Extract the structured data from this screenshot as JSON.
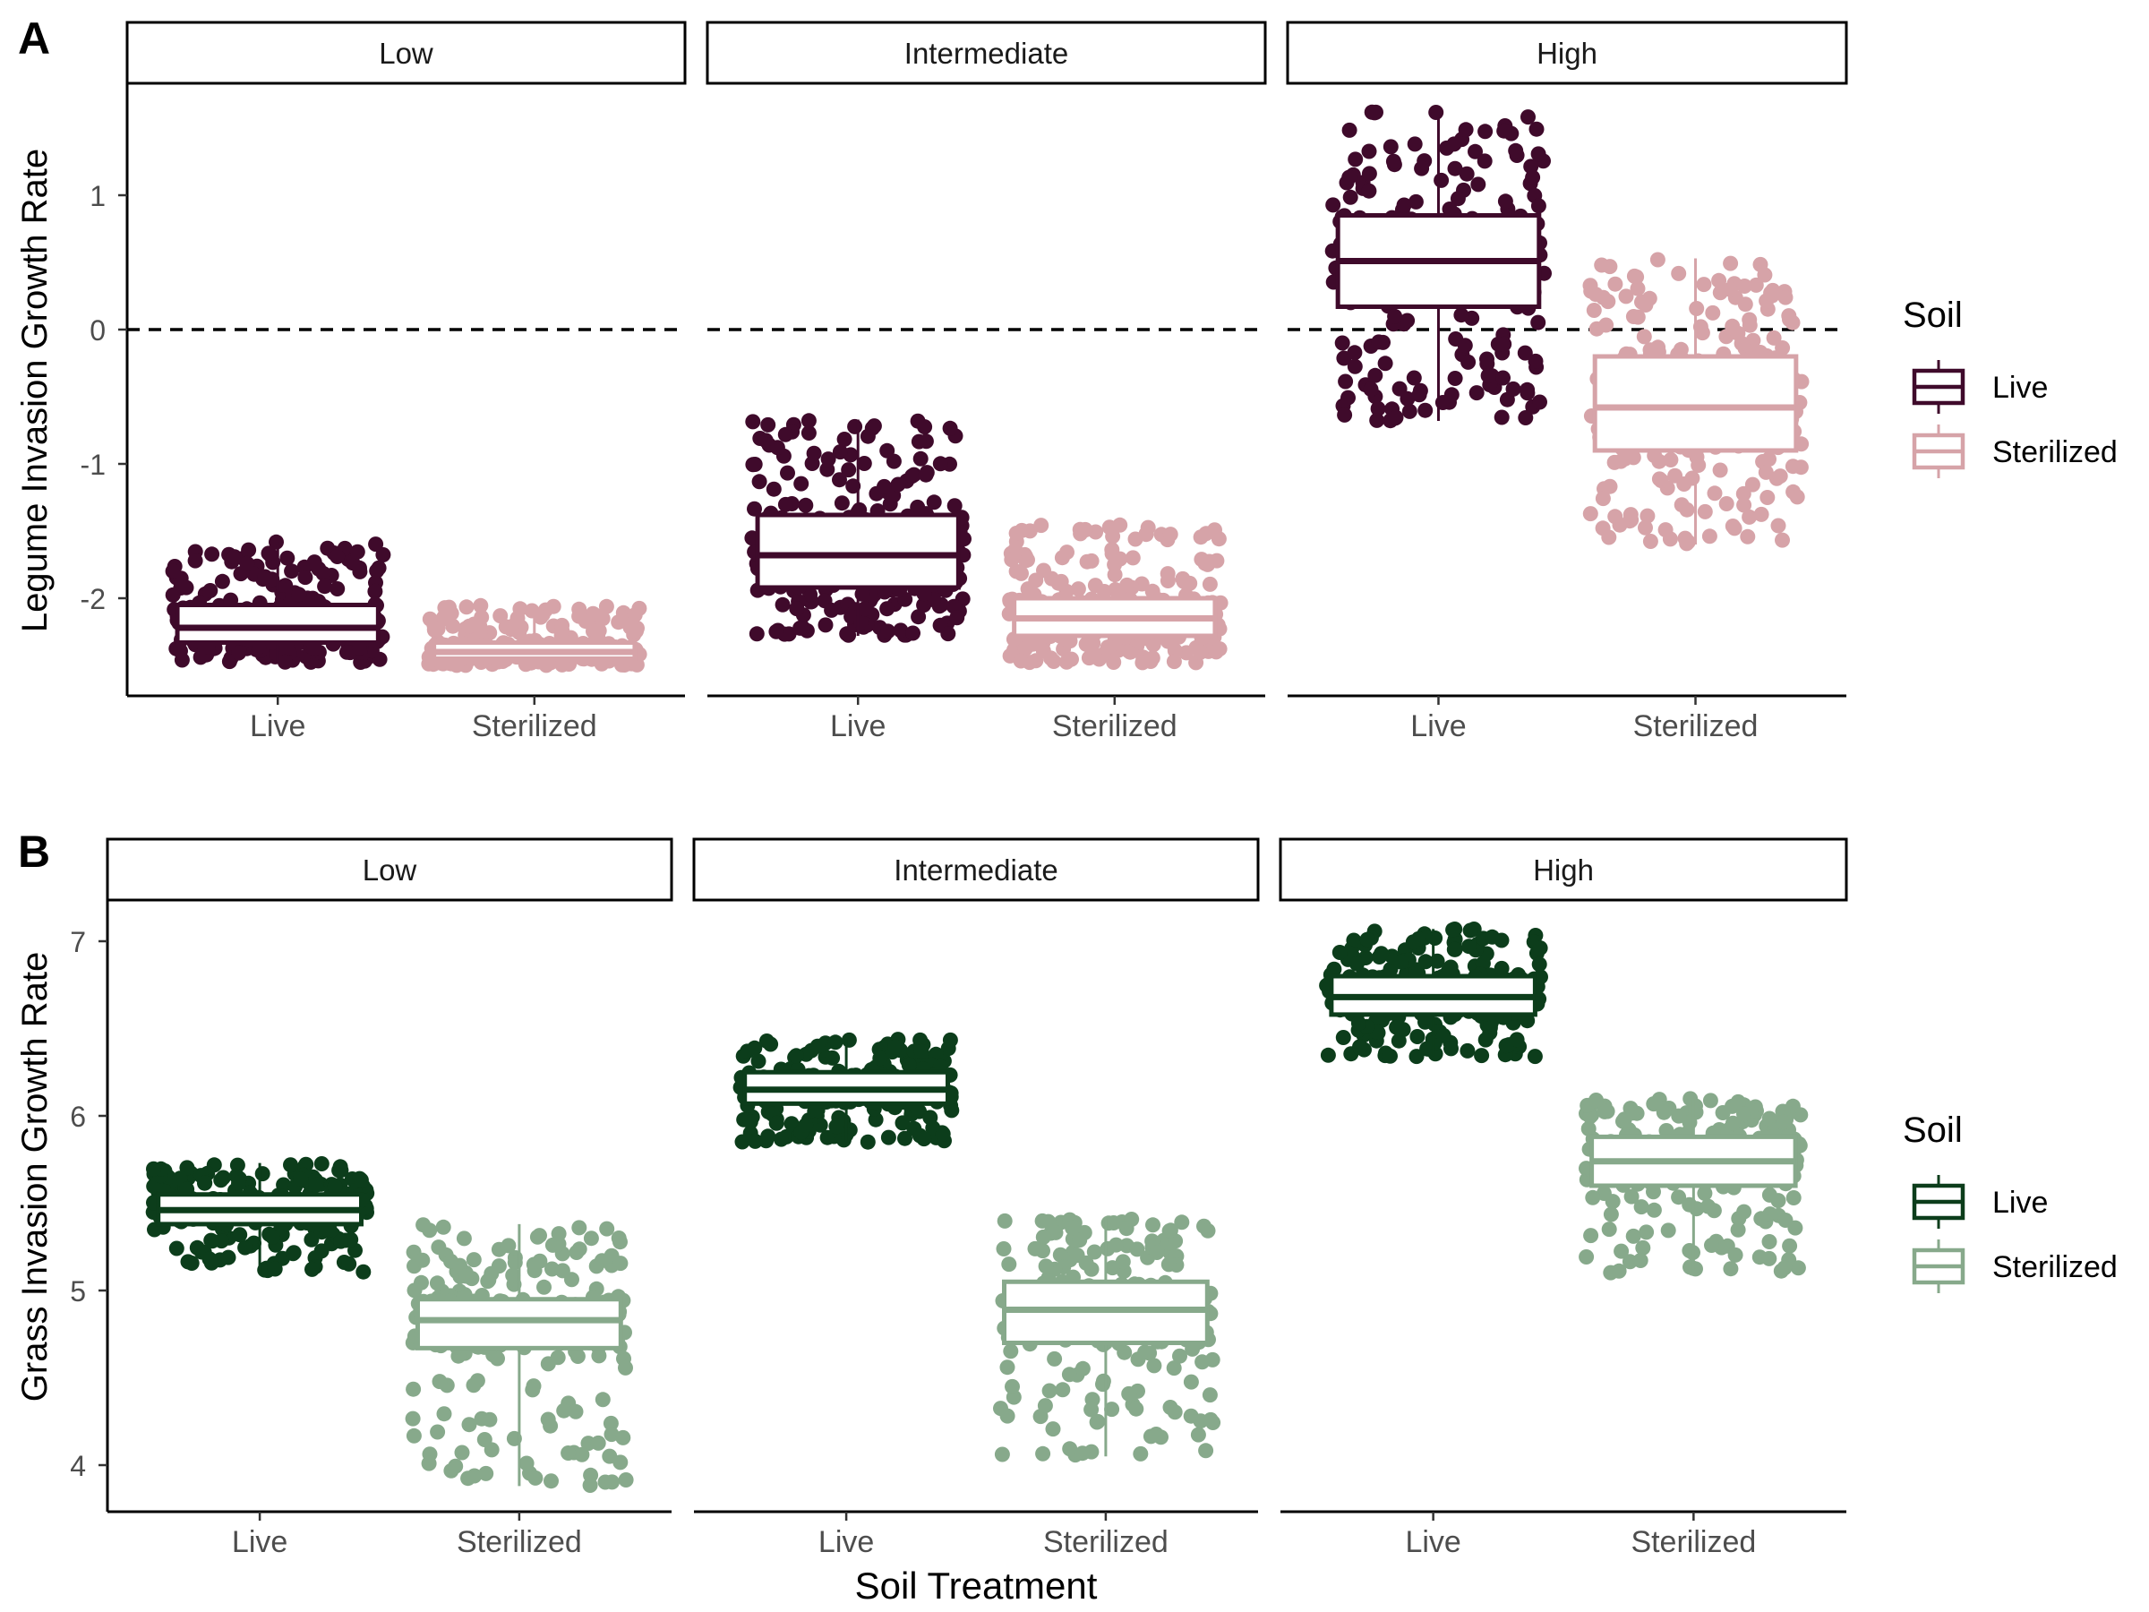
{
  "panels": [
    {
      "letter": "A",
      "ylabel": "Legume Invasion Growth Rate"
    },
    {
      "letter": "B",
      "ylabel": "Grass Invasion Growth Rate"
    }
  ],
  "shared": {
    "xlabel": "Soil Treatment",
    "legend_title": "Soil"
  },
  "colors": {
    "legume_live": "#3f0a2b",
    "legume_sterilized": "#d6a3a8",
    "grass_live": "#0c3d1b",
    "grass_sterilized": "#87a98b"
  },
  "chart_data": [
    {
      "type": "boxplot",
      "title": "",
      "ylabel": "Legume Invasion Growth Rate",
      "xlabel": "",
      "facets": [
        "Low",
        "Intermediate",
        "High"
      ],
      "categories": [
        "Live",
        "Sterilized"
      ],
      "yticks": [
        -2,
        -1,
        0,
        1
      ],
      "ylim": [
        -2.75,
        1.8
      ],
      "reference_line": {
        "y": 0,
        "style": "dashed"
      },
      "legend": {
        "title": "Soil",
        "entries": [
          "Live",
          "Sterilized"
        ],
        "placement": "right"
      },
      "series": [
        {
          "name": "Live",
          "color": "#3f0a2b",
          "boxes": [
            {
              "facet": "Low",
              "min": -2.48,
              "q1": -2.33,
              "median": -2.22,
              "q3": -2.05,
              "max": -1.58
            },
            {
              "facet": "Intermediate",
              "min": -2.28,
              "q1": -1.92,
              "median": -1.68,
              "q3": -1.38,
              "max": -0.67
            },
            {
              "facet": "High",
              "min": -0.68,
              "q1": 0.17,
              "median": 0.51,
              "q3": 0.85,
              "max": 1.62
            }
          ]
        },
        {
          "name": "Sterilized",
          "color": "#d6a3a8",
          "boxes": [
            {
              "facet": "Low",
              "min": -2.5,
              "q1": -2.45,
              "median": -2.4,
              "q3": -2.33,
              "max": -2.05
            },
            {
              "facet": "Intermediate",
              "min": -2.48,
              "q1": -2.28,
              "median": -2.15,
              "q3": -2.0,
              "max": -1.44
            },
            {
              "facet": "High",
              "min": -1.6,
              "q1": -0.9,
              "median": -0.58,
              "q3": -0.2,
              "max": 0.53
            }
          ]
        }
      ]
    },
    {
      "type": "boxplot",
      "title": "",
      "ylabel": "Grass Invasion Growth Rate",
      "xlabel": "Soil Treatment",
      "facets": [
        "Low",
        "Intermediate",
        "High"
      ],
      "categories": [
        "Live",
        "Sterilized"
      ],
      "yticks": [
        4,
        5,
        6,
        7
      ],
      "ylim": [
        3.73,
        7.23
      ],
      "legend": {
        "title": "Soil",
        "entries": [
          "Live",
          "Sterilized"
        ],
        "placement": "right"
      },
      "series": [
        {
          "name": "Live",
          "color": "#0c3d1b",
          "boxes": [
            {
              "facet": "Low",
              "min": 5.1,
              "q1": 5.38,
              "median": 5.46,
              "q3": 5.55,
              "max": 5.73
            },
            {
              "facet": "Intermediate",
              "min": 5.85,
              "q1": 6.07,
              "median": 6.15,
              "q3": 6.25,
              "max": 6.44
            },
            {
              "facet": "High",
              "min": 6.34,
              "q1": 6.58,
              "median": 6.68,
              "q3": 6.8,
              "max": 7.07
            }
          ]
        },
        {
          "name": "Sterilized",
          "color": "#87a98b",
          "boxes": [
            {
              "facet": "Low",
              "min": 3.88,
              "q1": 4.67,
              "median": 4.83,
              "q3": 4.95,
              "max": 5.38
            },
            {
              "facet": "Intermediate",
              "min": 4.05,
              "q1": 4.7,
              "median": 4.89,
              "q3": 5.05,
              "max": 5.41
            },
            {
              "facet": "High",
              "min": 5.1,
              "q1": 5.6,
              "median": 5.74,
              "q3": 5.88,
              "max": 6.1
            }
          ]
        }
      ]
    }
  ]
}
